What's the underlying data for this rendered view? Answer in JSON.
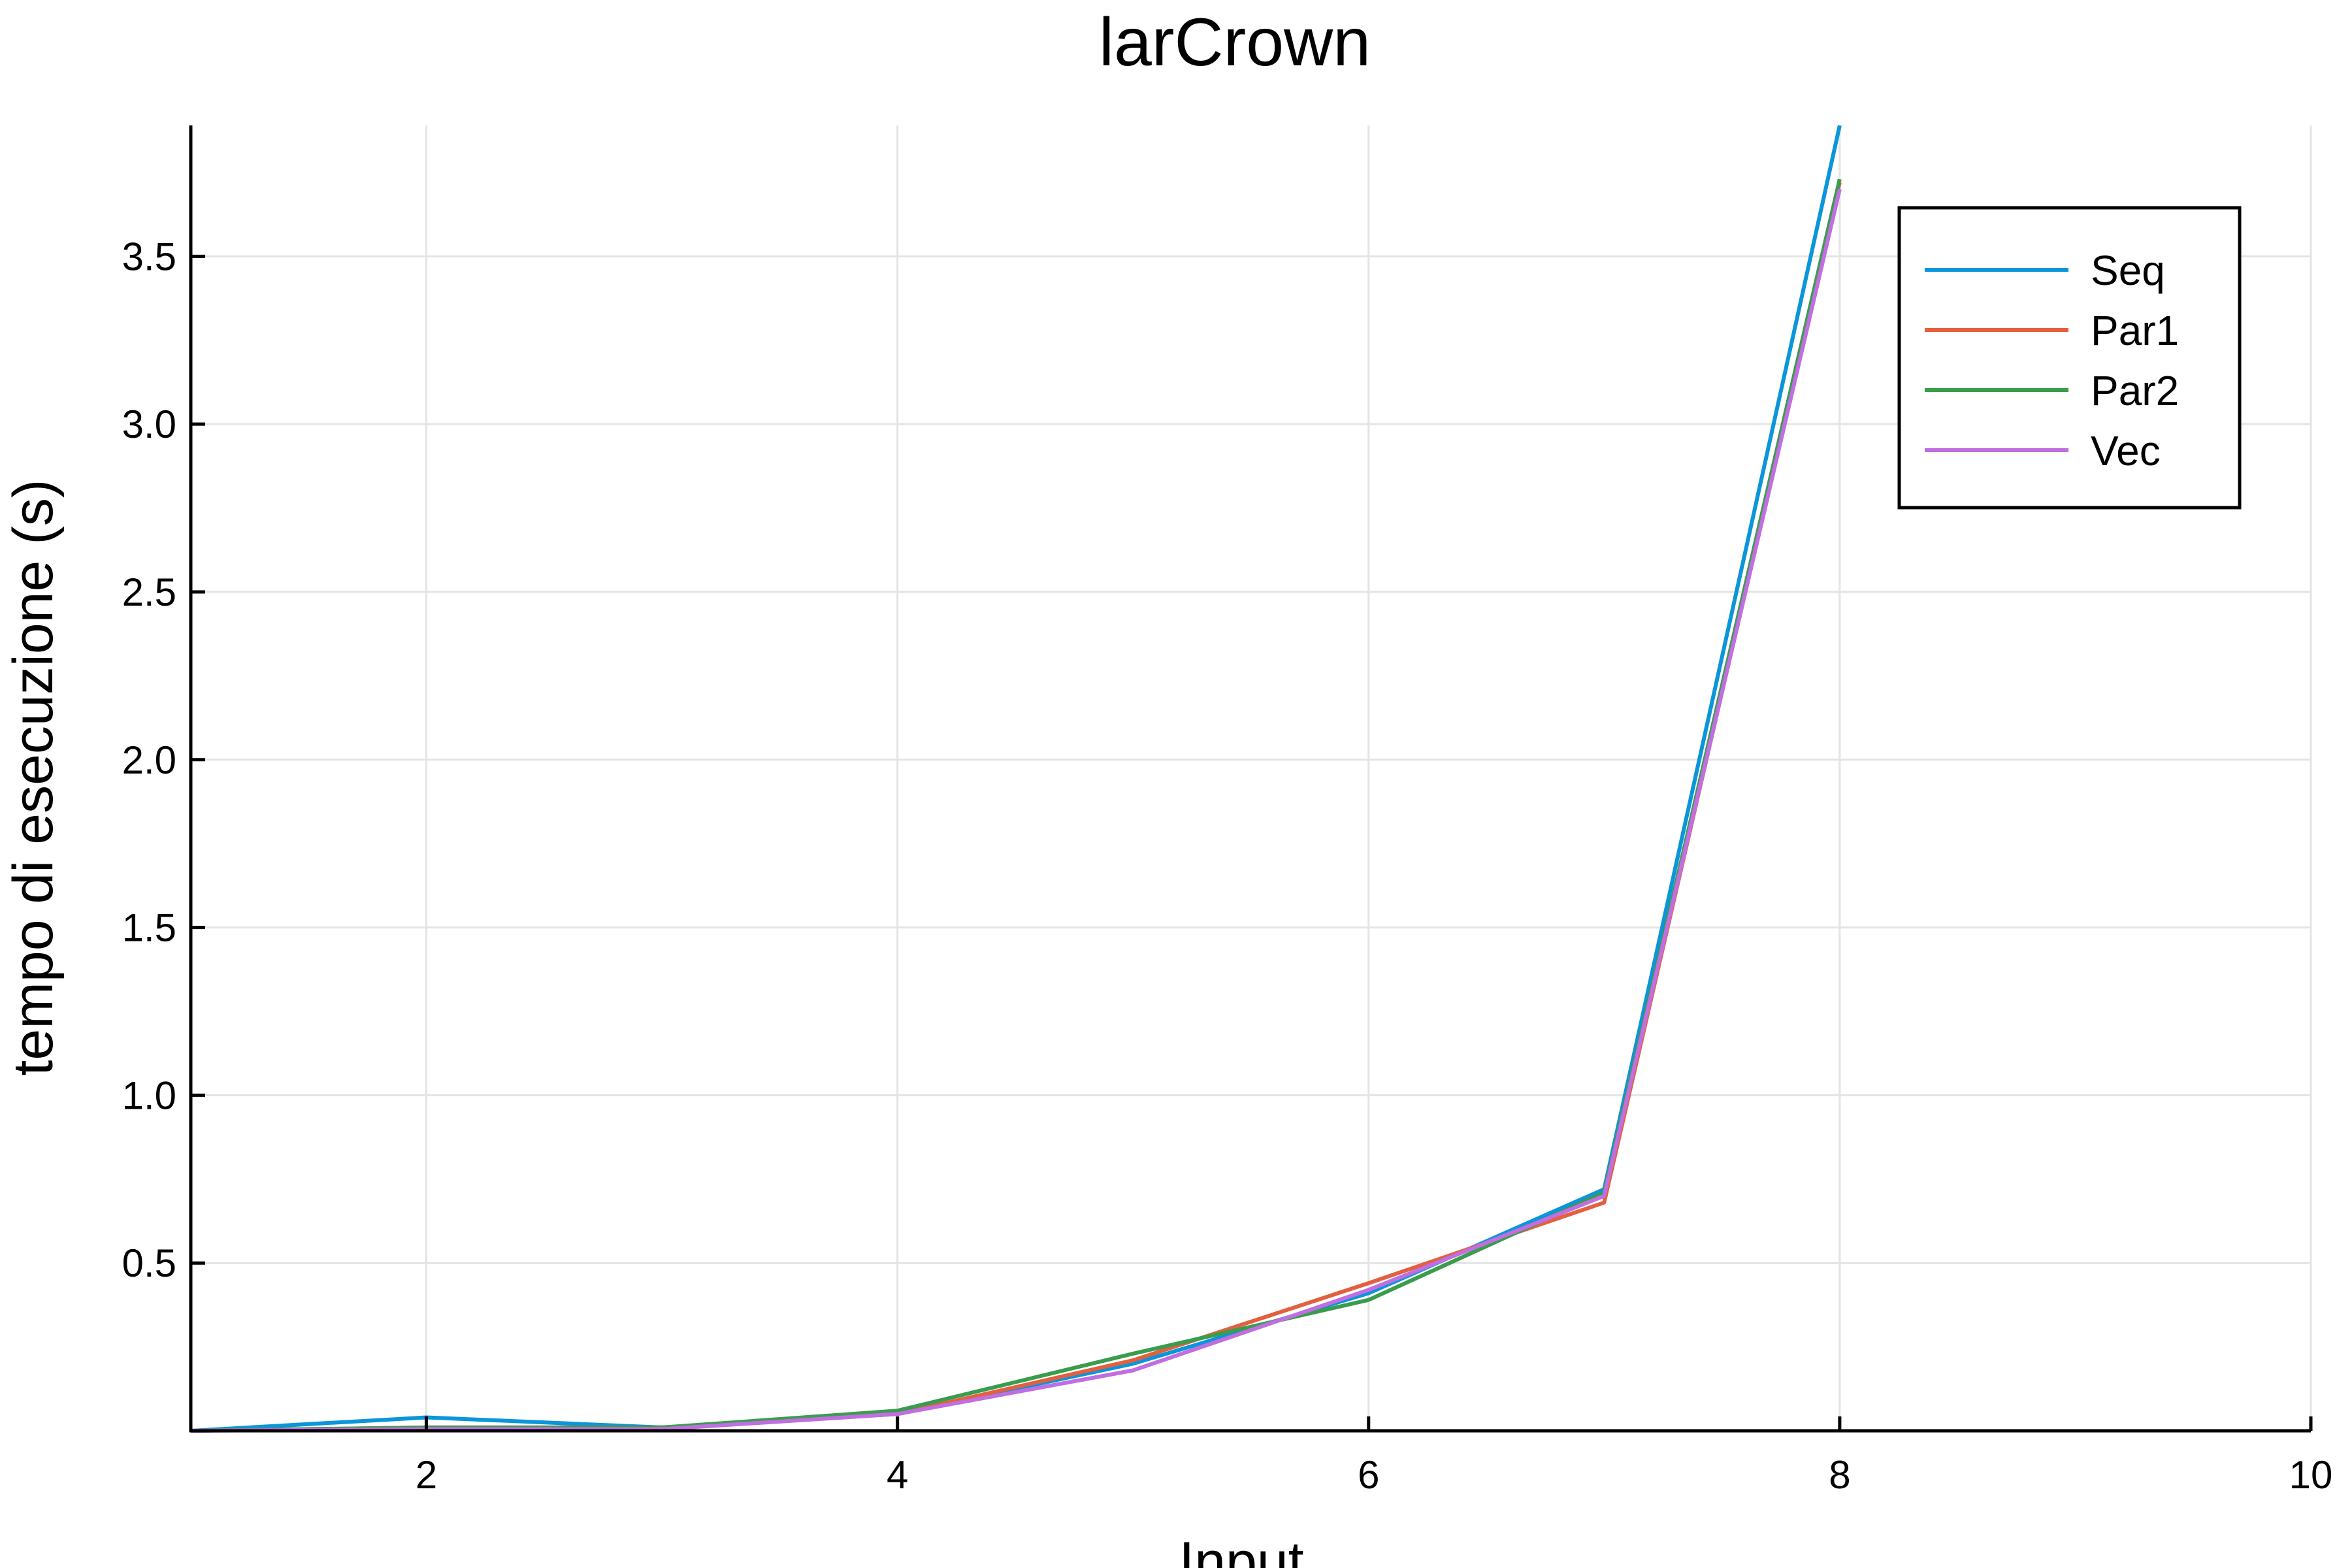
{
  "chart_data": {
    "type": "line",
    "title": "larCrown",
    "xlabel": "Input",
    "ylabel": "tempo di esecuzione (s)",
    "xlim": [
      1,
      10
    ],
    "ylim": [
      0.0,
      3.89
    ],
    "xticks": [
      2,
      4,
      6,
      8,
      10
    ],
    "yticks": [
      0.5,
      1.0,
      1.5,
      2.0,
      2.5,
      3.0,
      3.5
    ],
    "xtick_labels": [
      "2",
      "4",
      "6",
      "8",
      "10"
    ],
    "ytick_labels": [
      "0.5",
      "1.0",
      "1.5",
      "2.0",
      "2.5",
      "3.0",
      "3.5"
    ],
    "grid": true,
    "legend_position": "top-right",
    "x": [
      1,
      2,
      3,
      4,
      5,
      6,
      7,
      8
    ],
    "series": [
      {
        "name": "Seq",
        "color": "#0b95da",
        "values": [
          0.0,
          0.04,
          0.01,
          0.05,
          0.2,
          0.41,
          0.72,
          3.89
        ]
      },
      {
        "name": "Par1",
        "color": "#e2603f",
        "values": [
          0.0,
          0.01,
          0.01,
          0.05,
          0.21,
          0.44,
          0.68,
          3.72
        ]
      },
      {
        "name": "Par2",
        "color": "#3a9c4d",
        "values": [
          0.0,
          0.01,
          0.01,
          0.06,
          0.23,
          0.39,
          0.71,
          3.73
        ]
      },
      {
        "name": "Vec",
        "color": "#c06ee0",
        "values": [
          0.0,
          0.005,
          0.005,
          0.05,
          0.18,
          0.42,
          0.7,
          3.7
        ]
      }
    ]
  }
}
